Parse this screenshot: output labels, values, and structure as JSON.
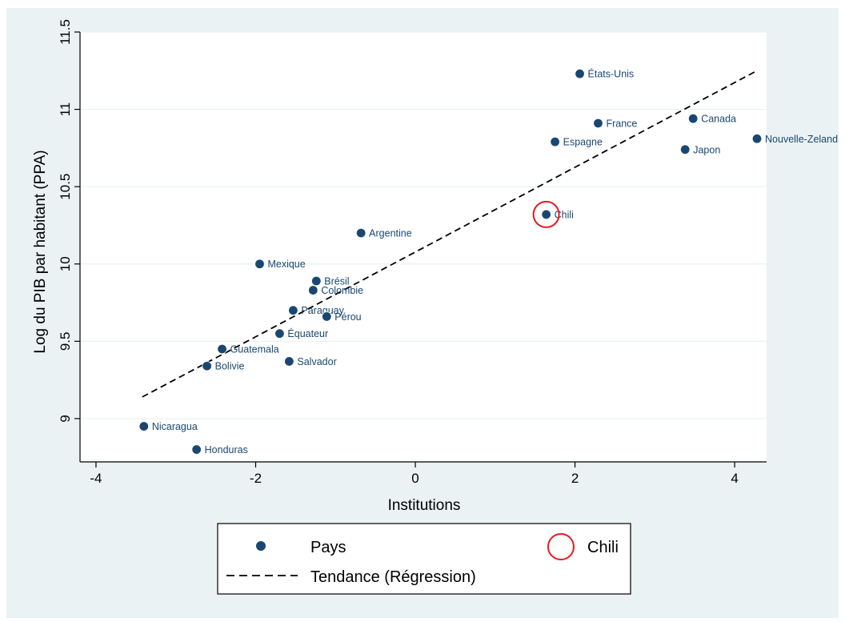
{
  "chart_data": {
    "type": "scatter",
    "title": "",
    "xlabel": "Institutions",
    "ylabel": "Log du PIB par habitant (PPA)",
    "xlim": [
      -4.2,
      4.4
    ],
    "ylim": [
      8.72,
      11.5
    ],
    "xticks": [
      {
        "value": -4,
        "label": "-4"
      },
      {
        "value": -2,
        "label": "-2"
      },
      {
        "value": 0,
        "label": "0"
      },
      {
        "value": 2,
        "label": "2"
      },
      {
        "value": 4,
        "label": "4"
      }
    ],
    "yticks": [
      {
        "value": 9,
        "label": "9"
      },
      {
        "value": 9.5,
        "label": "9.5"
      },
      {
        "value": 10,
        "label": "10"
      },
      {
        "value": 10.5,
        "label": "10.5"
      },
      {
        "value": 11,
        "label": "11"
      },
      {
        "value": 11.5,
        "label": "11.5"
      }
    ],
    "grid": true,
    "series": [
      {
        "name": "Pays",
        "color": "#1a476f",
        "points": [
          {
            "label": "États-Unis",
            "x": 2.06,
            "y": 11.23
          },
          {
            "label": "France",
            "x": 2.29,
            "y": 10.91
          },
          {
            "label": "Canada",
            "x": 3.48,
            "y": 10.94
          },
          {
            "label": "Espagne",
            "x": 1.75,
            "y": 10.79
          },
          {
            "label": "Japon",
            "x": 3.38,
            "y": 10.74
          },
          {
            "label": "Nouvelle-Zeland",
            "x": 4.28,
            "y": 10.81
          },
          {
            "label": "Chili",
            "x": 1.64,
            "y": 10.32
          },
          {
            "label": "Argentine",
            "x": -0.68,
            "y": 10.2
          },
          {
            "label": "Mexique",
            "x": -1.95,
            "y": 10.0
          },
          {
            "label": "Brésil",
            "x": -1.24,
            "y": 9.89
          },
          {
            "label": "Colombie",
            "x": -1.28,
            "y": 9.83
          },
          {
            "label": "Paraguay",
            "x": -1.53,
            "y": 9.7
          },
          {
            "label": "Pérou",
            "x": -1.11,
            "y": 9.66
          },
          {
            "label": "Équateur",
            "x": -1.7,
            "y": 9.55
          },
          {
            "label": "Guatemala",
            "x": -2.42,
            "y": 9.45
          },
          {
            "label": "Bolivie",
            "x": -2.61,
            "y": 9.34
          },
          {
            "label": "Salvador",
            "x": -1.58,
            "y": 9.37
          },
          {
            "label": "Nicaragua",
            "x": -3.4,
            "y": 8.95
          },
          {
            "label": "Honduras",
            "x": -2.74,
            "y": 8.8
          }
        ]
      },
      {
        "name": "Chili",
        "color": "#e8191f",
        "marker": "hollow-circle",
        "points": [
          {
            "x": 1.64,
            "y": 10.32
          }
        ]
      },
      {
        "name": "Tendance (Régression)",
        "color": "#000000",
        "style": "dashed",
        "points": [
          {
            "x": -3.42,
            "y": 9.14
          },
          {
            "x": 4.28,
            "y": 11.25
          }
        ]
      }
    ],
    "legend": {
      "placement": "bottom",
      "entries": [
        {
          "label": "Pays",
          "marker": "dot"
        },
        {
          "label": "Chili",
          "marker": "hollow-circle"
        },
        {
          "label": "Tendance (Régression)",
          "marker": "dashed-line"
        }
      ]
    },
    "colors": {
      "background": "#eaf2f3",
      "plot_background": "#ffffff",
      "gridline": "#eaf2f3",
      "marker": "#1a476f",
      "highlight": "#e8191f"
    }
  }
}
